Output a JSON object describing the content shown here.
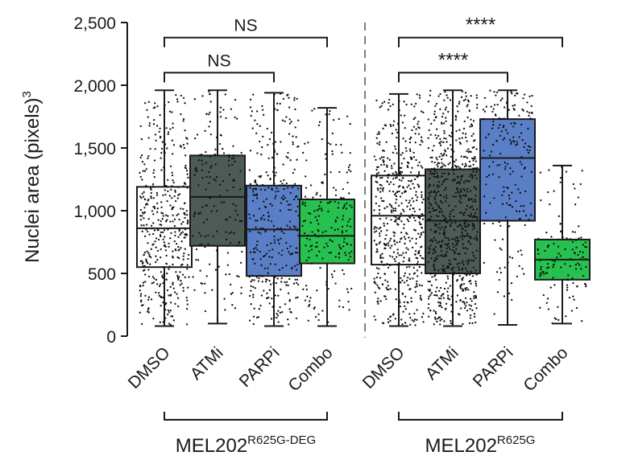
{
  "chart_data": {
    "type": "box",
    "ylabel": "Nuclei area (pixels)",
    "ylabel_superscript": "3",
    "ylim": [
      0,
      2500
    ],
    "yticks": [
      {
        "value": 0,
        "label": "0"
      },
      {
        "value": 500,
        "label": "500"
      },
      {
        "value": 1000,
        "label": "1,000"
      },
      {
        "value": 1500,
        "label": "1,500"
      },
      {
        "value": 2000,
        "label": "2,000"
      },
      {
        "value": 2500,
        "label": "2,500"
      }
    ],
    "groups": [
      {
        "name": "MEL202",
        "name_superscript": "R625G-DEG",
        "categories": [
          {
            "label": "DMSO",
            "min": 80,
            "q1": 550,
            "median": 860,
            "q3": 1190,
            "max": 1960,
            "color": "#ffffff",
            "n": 420
          },
          {
            "label": "ATMi",
            "min": 100,
            "q1": 720,
            "median": 1110,
            "q3": 1440,
            "max": 1960,
            "color": "#4c5b55",
            "n": 170
          },
          {
            "label": "PARPi",
            "min": 80,
            "q1": 480,
            "median": 850,
            "q3": 1200,
            "max": 1940,
            "color": "#5b7fc7",
            "n": 330
          },
          {
            "label": "Combo",
            "min": 80,
            "q1": 580,
            "median": 800,
            "q3": 1090,
            "max": 1820,
            "color": "#27c150",
            "n": 200
          }
        ],
        "comparisons": [
          {
            "from": "DMSO",
            "to": "Combo",
            "value": 2380,
            "label": "NS"
          },
          {
            "from": "DMSO",
            "to": "PARPi",
            "value": 2100,
            "label": "NS"
          }
        ]
      },
      {
        "name": "MEL202",
        "name_superscript": "R625G",
        "categories": [
          {
            "label": "DMSO",
            "min": 80,
            "q1": 570,
            "median": 960,
            "q3": 1280,
            "max": 1930,
            "color": "#ffffff",
            "n": 520
          },
          {
            "label": "ATMi",
            "min": 80,
            "q1": 500,
            "median": 920,
            "q3": 1330,
            "max": 1960,
            "color": "#4c5b55",
            "n": 700
          },
          {
            "label": "PARPi",
            "min": 90,
            "q1": 920,
            "median": 1420,
            "q3": 1730,
            "max": 1960,
            "color": "#5b7fc7",
            "n": 190
          },
          {
            "label": "Combo",
            "min": 100,
            "q1": 450,
            "median": 610,
            "q3": 770,
            "max": 1360,
            "color": "#27c150",
            "n": 130
          }
        ],
        "comparisons": [
          {
            "from": "DMSO",
            "to": "Combo",
            "value": 2380,
            "label": "****"
          },
          {
            "from": "DMSO",
            "to": "PARPi",
            "value": 2100,
            "label": "****"
          }
        ]
      }
    ]
  }
}
